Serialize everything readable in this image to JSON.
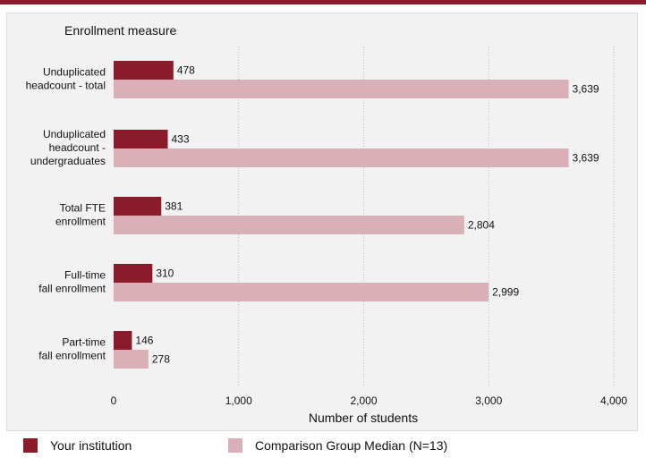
{
  "colors": {
    "accent_bar": "#8b1a2b",
    "institution": "#8b1a2b",
    "comparison": "#d9b0b8",
    "panel_bg": "#f2f2f2"
  },
  "legend": {
    "items": [
      {
        "label": "Your institution",
        "color": "#8b1a2b"
      },
      {
        "label": "Comparison Group Median (N=13)",
        "color": "#d9b0b8"
      }
    ]
  },
  "chart_data": {
    "type": "bar",
    "orientation": "horizontal",
    "category_axis_title": "Enrollment measure",
    "xlabel": "Number of students",
    "xlim": [
      0,
      4000
    ],
    "xticks": [
      0,
      1000,
      2000,
      3000,
      4000
    ],
    "xtick_labels": [
      "0",
      "1,000",
      "2,000",
      "3,000",
      "4,000"
    ],
    "categories": [
      [
        "Unduplicated",
        "headcount - total"
      ],
      [
        "Unduplicated",
        "headcount -",
        "undergraduates"
      ],
      [
        "Total FTE",
        "enrollment"
      ],
      [
        "Full-time",
        "fall enrollment"
      ],
      [
        "Part-time",
        "fall enrollment"
      ]
    ],
    "series": [
      {
        "name": "Your institution",
        "color": "#8b1a2b",
        "values": [
          478,
          433,
          381,
          310,
          146
        ],
        "value_labels": [
          "478",
          "433",
          "381",
          "310",
          "146"
        ]
      },
      {
        "name": "Comparison Group Median (N=13)",
        "color": "#d9b0b8",
        "values": [
          3639,
          3639,
          2804,
          2999,
          278
        ],
        "value_labels": [
          "3,639",
          "3,639",
          "2,804",
          "2,999",
          "278"
        ]
      }
    ],
    "grid": "vertical dashed",
    "legend_position": "bottom"
  }
}
